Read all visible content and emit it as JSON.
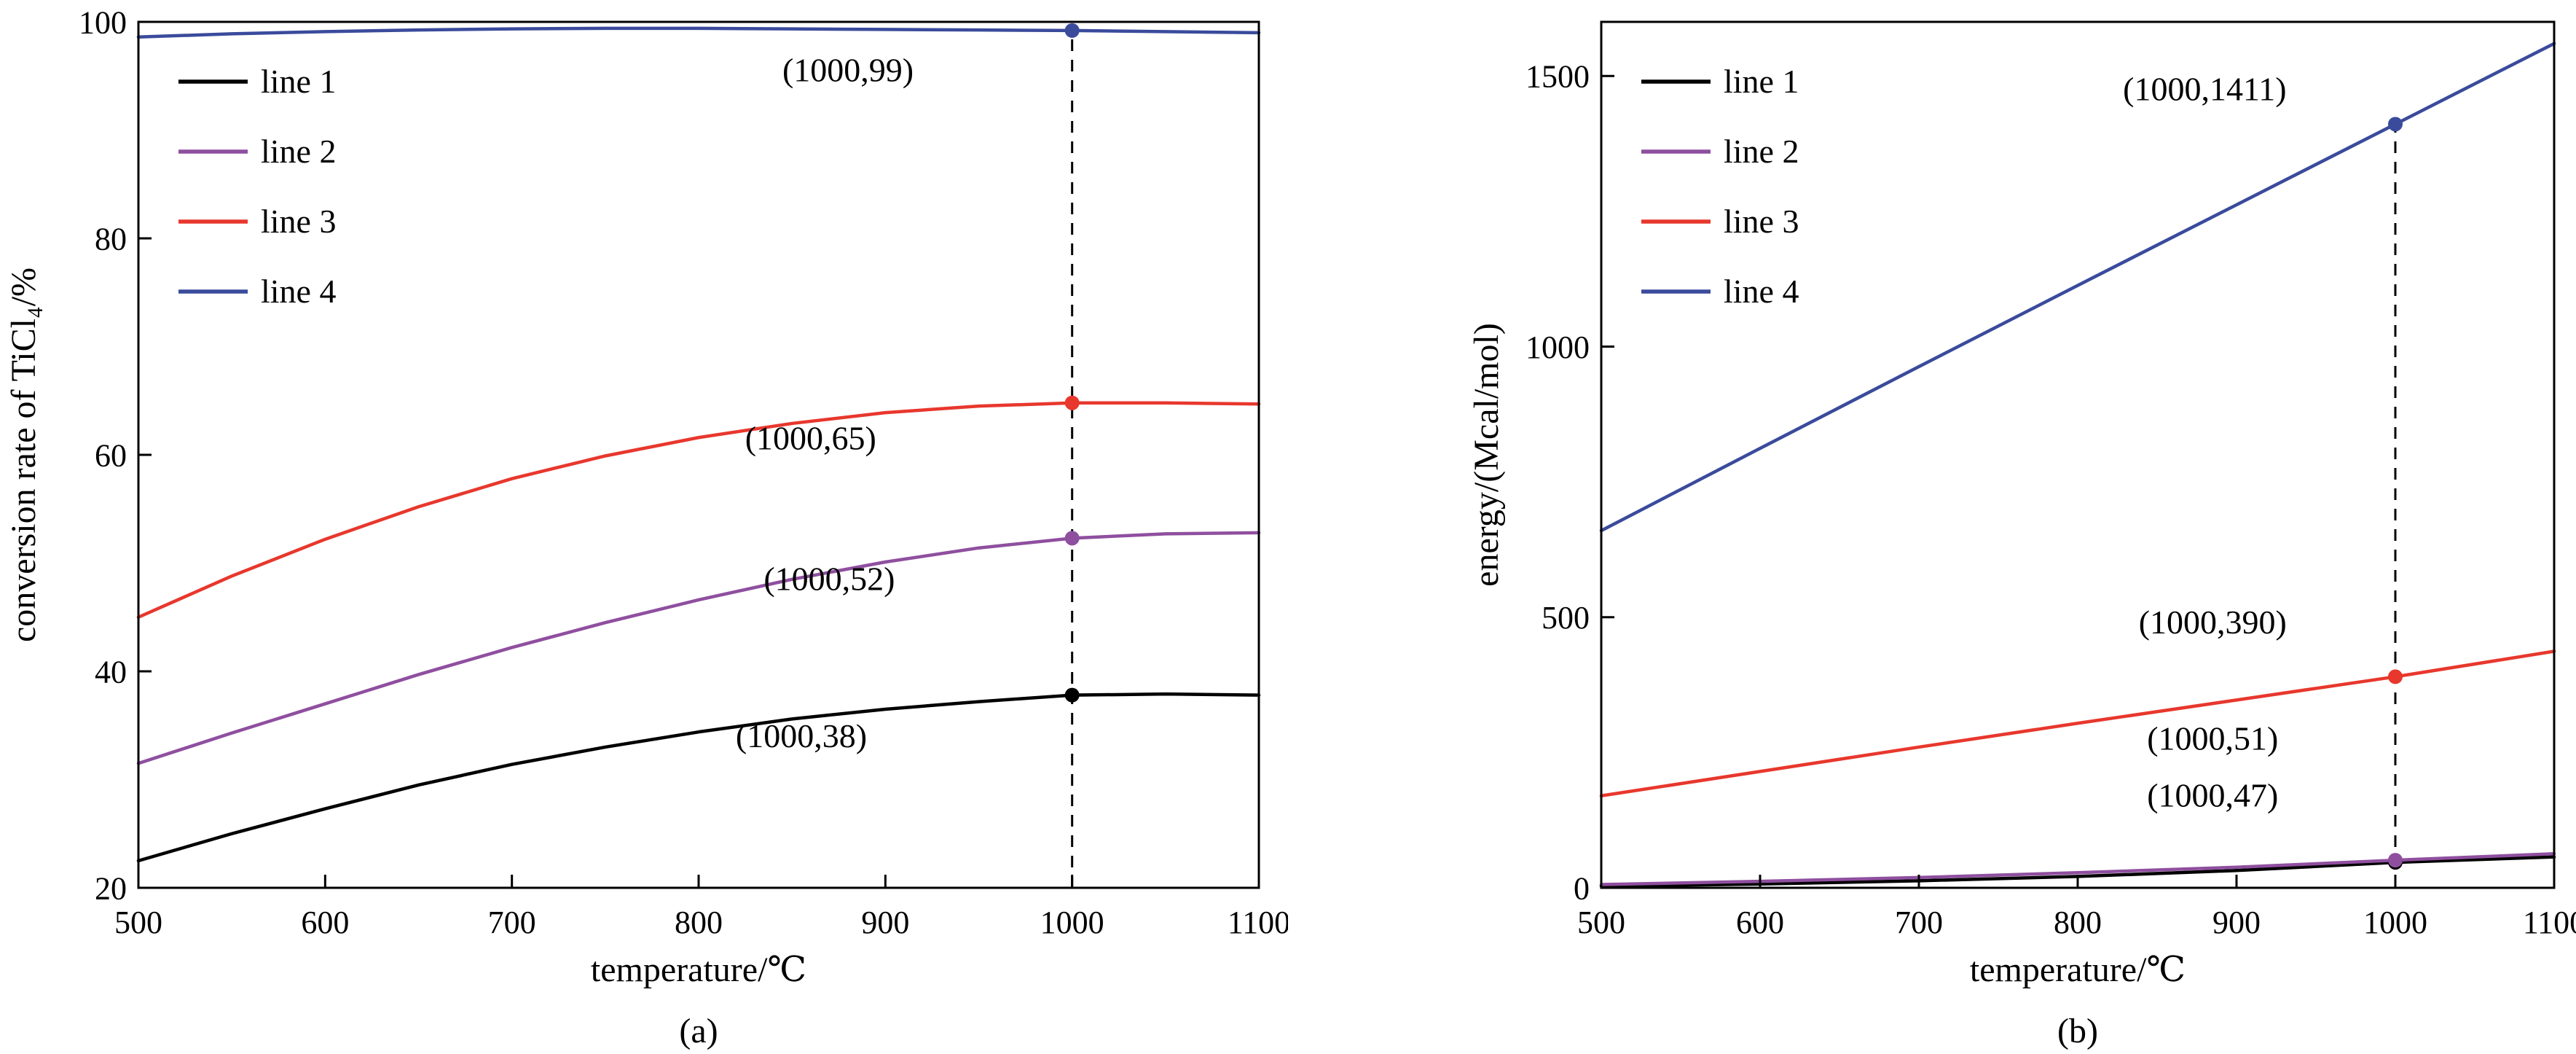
{
  "figure": {
    "background": "#ffffff"
  },
  "chart_data": [
    {
      "type": "line",
      "panel_label": "(a)",
      "title": "",
      "xlabel": "temperature/℃",
      "ylabel": "conversion rate of TiCl₄/%",
      "xlim": [
        500,
        1100
      ],
      "ylim": [
        20,
        100
      ],
      "xticks": [
        500,
        600,
        700,
        800,
        900,
        1000,
        1100
      ],
      "yticks": [
        20,
        40,
        60,
        80,
        100
      ],
      "grid": false,
      "legend_position": "top-left",
      "marker_x": 1000,
      "dash_top": 99.2,
      "series": [
        {
          "name": "line 1",
          "color": "#000000",
          "x": [
            500,
            550,
            600,
            650,
            700,
            750,
            800,
            850,
            900,
            950,
            1000,
            1050,
            1100
          ],
          "y": [
            22.5,
            25.0,
            27.3,
            29.5,
            31.4,
            33.0,
            34.4,
            35.6,
            36.5,
            37.2,
            37.8,
            37.9,
            37.8
          ]
        },
        {
          "name": "line 2",
          "color": "#8f4f9f",
          "x": [
            500,
            550,
            600,
            650,
            700,
            750,
            800,
            850,
            900,
            950,
            1000,
            1050,
            1100
          ],
          "y": [
            31.5,
            34.3,
            37.0,
            39.7,
            42.2,
            44.5,
            46.6,
            48.5,
            50.1,
            51.4,
            52.3,
            52.7,
            52.8
          ]
        },
        {
          "name": "line 3",
          "color": "#e8372d",
          "x": [
            500,
            550,
            600,
            650,
            700,
            750,
            800,
            850,
            900,
            950,
            1000,
            1050,
            1100
          ],
          "y": [
            45.0,
            48.8,
            52.2,
            55.2,
            57.8,
            59.9,
            61.6,
            62.9,
            63.9,
            64.5,
            64.8,
            64.8,
            64.7
          ]
        },
        {
          "name": "line 4",
          "color": "#3a4b9c",
          "x": [
            500,
            550,
            600,
            650,
            700,
            750,
            800,
            850,
            900,
            950,
            1000,
            1050,
            1100
          ],
          "y": [
            98.6,
            98.9,
            99.1,
            99.25,
            99.35,
            99.4,
            99.4,
            99.35,
            99.3,
            99.25,
            99.2,
            99.1,
            99.0
          ]
        }
      ],
      "annotations": [
        {
          "text": "(1000,99)",
          "color": "#3a4b9c",
          "x": 880,
          "y": 94.5
        },
        {
          "text": "(1000,65)",
          "color": "#e8372d",
          "x": 860,
          "y": 60.5
        },
        {
          "text": "(1000,52)",
          "color": "#8f4f9f",
          "x": 870,
          "y": 47.5
        },
        {
          "text": "(1000,38)",
          "color": "#000000",
          "x": 855,
          "y": 33.0
        }
      ]
    },
    {
      "type": "line",
      "panel_label": "(b)",
      "title": "",
      "xlabel": "temperature/℃",
      "ylabel": "energy/(Mcal/mol)",
      "xlim": [
        500,
        1100
      ],
      "ylim": [
        0,
        1600
      ],
      "xticks": [
        500,
        600,
        700,
        800,
        900,
        1000,
        1100
      ],
      "yticks": [
        0,
        500,
        1000,
        1500
      ],
      "grid": false,
      "legend_position": "top-left",
      "marker_x": 1000,
      "dash_top": 1411,
      "series": [
        {
          "name": "line 1",
          "color": "#000000",
          "x": [
            500,
            600,
            700,
            800,
            900,
            1000,
            1100
          ],
          "y": [
            3,
            7,
            13,
            21,
            32,
            47,
            57
          ]
        },
        {
          "name": "line 2",
          "color": "#8f4f9f",
          "x": [
            500,
            600,
            700,
            800,
            900,
            1000,
            1100
          ],
          "y": [
            6,
            12,
            19,
            28,
            38,
            51,
            63
          ]
        },
        {
          "name": "line 3",
          "color": "#e8372d",
          "x": [
            500,
            600,
            700,
            800,
            900,
            1000,
            1100
          ],
          "y": [
            170,
            215,
            260,
            304,
            347,
            390,
            437
          ]
        },
        {
          "name": "line 4",
          "color": "#3a4b9c",
          "x": [
            500,
            600,
            700,
            800,
            900,
            1000,
            1100
          ],
          "y": [
            660,
            812,
            963,
            1113,
            1262,
            1411,
            1560
          ]
        }
      ],
      "annotations": [
        {
          "text": "(1000,1411)",
          "color": "#3a4b9c",
          "x": 880,
          "y": 1455
        },
        {
          "text": "(1000,390)",
          "color": "#e8372d",
          "x": 885,
          "y": 470
        },
        {
          "text": "(1000,51)",
          "color": "#8f4f9f",
          "x": 885,
          "y": 255
        },
        {
          "text": "(1000,47)",
          "color": "#000000",
          "x": 885,
          "y": 150
        }
      ]
    }
  ]
}
